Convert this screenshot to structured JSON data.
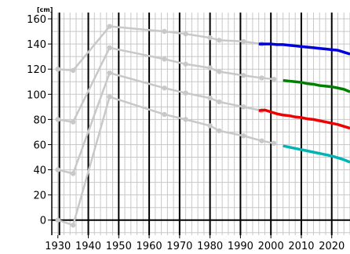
{
  "chart_data": {
    "type": "line",
    "title": "",
    "xlabel": "",
    "ylabel": "",
    "y_unit": "[cm]",
    "xlim": [
      1928,
      2026
    ],
    "ylim": [
      -12,
      165
    ],
    "x_ticks": [
      1930,
      1940,
      1950,
      1960,
      1970,
      1980,
      1990,
      2000,
      2010,
      2020
    ],
    "y_ticks": [
      0,
      20,
      40,
      60,
      80,
      100,
      120,
      140,
      160
    ],
    "major_vlines": [
      1930.5,
      1940,
      1950,
      1960,
      1970,
      1980,
      1990,
      2000,
      2010,
      2020
    ],
    "baseline_y": 0,
    "grid": true,
    "colors": {
      "historic": "#c8c8c8",
      "continuous": [
        "#0000dd",
        "#008000",
        "#ee0000",
        "#00b4b4"
      ],
      "grid_major": "#000000",
      "grid_minor": "#c8c8c8"
    },
    "historic_series": [
      {
        "x": [
          1930,
          1935,
          1947,
          1965,
          1972,
          1980,
          1983,
          1991,
          1997
        ],
        "y": [
          120,
          119,
          154,
          150,
          148,
          145,
          143,
          142,
          140
        ]
      },
      {
        "x": [
          1930,
          1935,
          1947,
          1965,
          1972,
          1980,
          1983,
          1991,
          1997,
          2001
        ],
        "y": [
          80,
          78,
          137,
          128,
          124,
          121,
          118,
          115,
          113,
          112
        ]
      },
      {
        "x": [
          1930,
          1935,
          1947,
          1965,
          1972,
          1980,
          1983,
          1991,
          1997
        ],
        "y": [
          40,
          37,
          117,
          105,
          101,
          97,
          94,
          90,
          87
        ]
      },
      {
        "x": [
          1930,
          1935,
          1947,
          1965,
          1972,
          1980,
          1983,
          1991,
          1997,
          2001
        ],
        "y": [
          0,
          -4,
          98,
          84,
          80,
          75,
          71,
          67,
          63,
          61
        ]
      }
    ],
    "continuous_series": [
      {
        "x": [
          1996,
          1998,
          2000,
          2002,
          2004,
          2006,
          2008,
          2010,
          2012,
          2014,
          2016,
          2018,
          2020,
          2022,
          2024,
          2026
        ],
        "y": [
          140,
          140,
          140,
          139.5,
          139.5,
          139,
          138.5,
          138,
          137.5,
          137,
          136.5,
          136,
          135.5,
          135,
          133.5,
          132
        ]
      },
      {
        "x": [
          2004,
          2006,
          2008,
          2010,
          2012,
          2014,
          2016,
          2018,
          2020,
          2022,
          2024,
          2026
        ],
        "y": [
          111,
          110.5,
          110,
          109.5,
          108.5,
          108,
          107,
          106.5,
          106,
          105,
          104,
          102
        ]
      },
      {
        "x": [
          1996,
          1998,
          2000,
          2002,
          2004,
          2006,
          2008,
          2010,
          2012,
          2014,
          2016,
          2018,
          2020,
          2022,
          2024,
          2026
        ],
        "y": [
          87,
          87.5,
          86,
          84.5,
          83.5,
          83,
          82,
          81.5,
          80.5,
          80,
          79,
          78,
          77,
          76,
          74.5,
          73
        ]
      },
      {
        "x": [
          2004,
          2006,
          2008,
          2010,
          2012,
          2014,
          2016,
          2018,
          2020,
          2022,
          2024,
          2026
        ],
        "y": [
          59,
          58,
          57,
          56,
          55,
          54,
          53,
          52,
          51,
          49.5,
          48,
          46
        ]
      }
    ]
  }
}
